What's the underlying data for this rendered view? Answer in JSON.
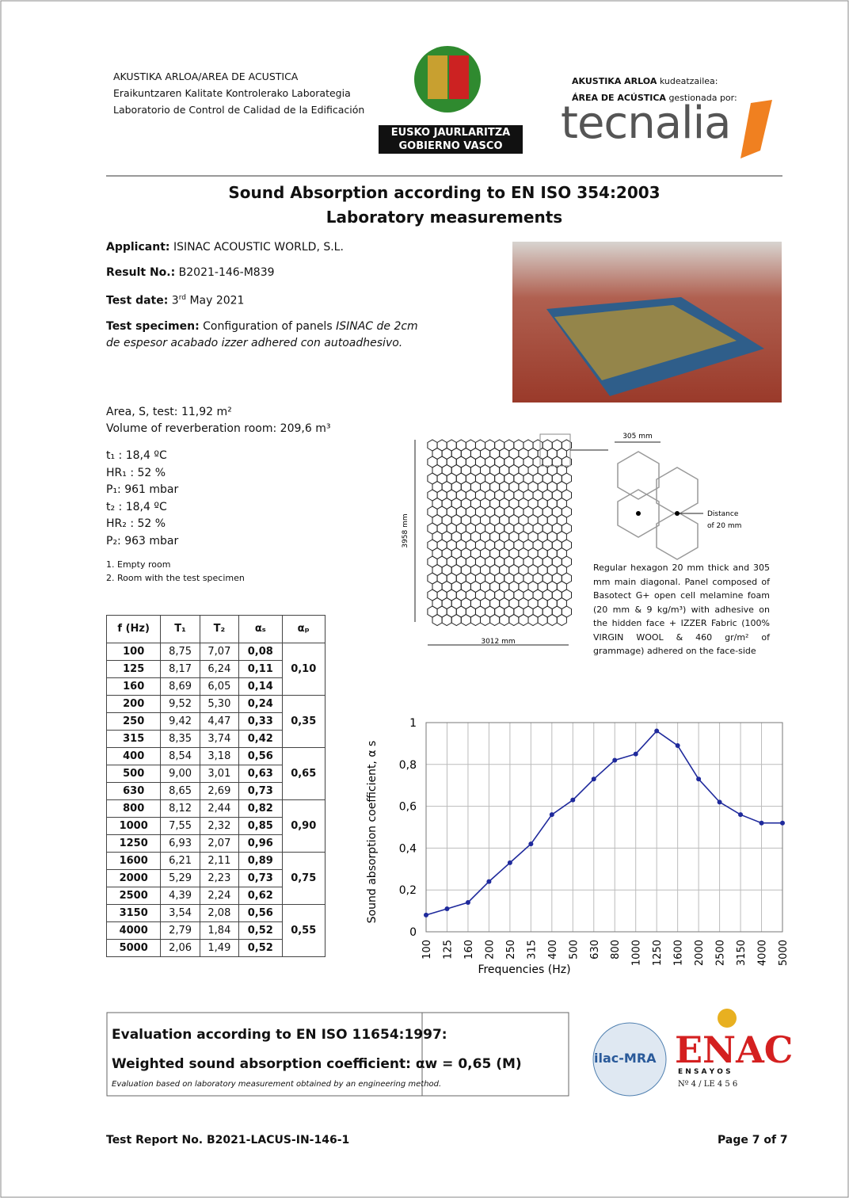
{
  "header": {
    "lab_lines": [
      "AKUSTIKA ARLOA/AREA DE ACUSTICA",
      "Eraikuntzaren Kalitate Kontrolerako Laborategia",
      "Laboratorio de Control de Calidad de la Edificación"
    ],
    "gov_badge": [
      "EUSKO JAURLARITZA",
      "GOBIERNO VASCO"
    ],
    "manager_lines": [
      {
        "bold": "AKUSTIKA ARLOA",
        "rest": "kudeatzailea:"
      },
      {
        "bold": "ÁREA DE ACÚSTICA",
        "rest": "gestionada por:"
      }
    ],
    "brand": "tecnalia"
  },
  "title": [
    "Sound Absorption according to EN ISO 354:2003",
    "Laboratory measurements"
  ],
  "info": {
    "applicant": {
      "label": "Applicant:",
      "value": "ISINAC ACOUSTIC WORLD, S.L."
    },
    "result": {
      "label": "Result No.:",
      "value": "B2021-146-M839"
    },
    "date": {
      "label": "Test date:",
      "day": "3",
      "suffix": "rd",
      "rest": "May 2021"
    },
    "specimen": {
      "label": "Test specimen:",
      "value": "Configuration of panels",
      "italic": "ISINAC de 2cm de espesor acabado izzer adhered con autoadhesivo."
    }
  },
  "conditions": {
    "room": [
      "Area, S, test: 11,92 m²",
      "Volume of reverberation room: 209,6 m³"
    ],
    "climate": [
      "t₁ : 18,4 ºC",
      "HR₁ : 52 %",
      "P₁: 961 mbar",
      "t₂ : 18,4 ºC",
      "HR₂ : 52 %",
      "P₂: 963 mbar"
    ],
    "notes": [
      "1. Empty room",
      "2. Room with the test specimen"
    ]
  },
  "diagram": {
    "diagonal": "305 mm",
    "height": "3958 mm",
    "width": "3012 mm",
    "distance": [
      "Distance",
      "of 20 mm"
    ],
    "description": "Regular hexagon 20 mm thick and 305 mm main diagonal. Panel composed of Basotect G+ open cell melamine foam (20 mm & 9 kg/m³) with adhesive on the hidden face + IZZER Fabric (100% VIRGIN WOOL & 460 gr/m² of grammage) adhered on the face-side"
  },
  "table": {
    "header": [
      "f (Hz)",
      "T₁",
      "T₂",
      "αₛ",
      "αₚ"
    ],
    "rows": [
      [
        "100",
        "8,75",
        "7,07",
        "0,08"
      ],
      [
        "125",
        "8,17",
        "6,24",
        "0,11"
      ],
      [
        "160",
        "8,69",
        "6,05",
        "0,14"
      ],
      [
        "200",
        "9,52",
        "5,30",
        "0,24"
      ],
      [
        "250",
        "9,42",
        "4,47",
        "0,33"
      ],
      [
        "315",
        "8,35",
        "3,74",
        "0,42"
      ],
      [
        "400",
        "8,54",
        "3,18",
        "0,56"
      ],
      [
        "500",
        "9,00",
        "3,01",
        "0,63"
      ],
      [
        "630",
        "8,65",
        "2,69",
        "0,73"
      ],
      [
        "800",
        "8,12",
        "2,44",
        "0,82"
      ],
      [
        "1000",
        "7,55",
        "2,32",
        "0,85"
      ],
      [
        "1250",
        "6,93",
        "2,07",
        "0,96"
      ],
      [
        "1600",
        "6,21",
        "2,11",
        "0,89"
      ],
      [
        "2000",
        "5,29",
        "2,23",
        "0,73"
      ],
      [
        "2500",
        "4,39",
        "2,24",
        "0,62"
      ],
      [
        "3150",
        "3,54",
        "2,08",
        "0,56"
      ],
      [
        "4000",
        "2,79",
        "1,84",
        "0,52"
      ],
      [
        "5000",
        "2,06",
        "1,49",
        "0,52"
      ]
    ],
    "groups": [
      "0,10",
      "0,35",
      "0,65",
      "0,90",
      "0,75",
      "0,55"
    ]
  },
  "chart_data": {
    "type": "line",
    "x_label": "Frequencies (Hz)",
    "y_label": "Sound absorption coefficient, α s",
    "categories": [
      "100",
      "125",
      "160",
      "200",
      "250",
      "315",
      "400",
      "500",
      "630",
      "800",
      "1000",
      "1250",
      "1600",
      "2000",
      "2500",
      "3150",
      "4000",
      "5000"
    ],
    "values": [
      0.08,
      0.11,
      0.14,
      0.24,
      0.33,
      0.42,
      0.56,
      0.63,
      0.73,
      0.82,
      0.85,
      0.96,
      0.89,
      0.73,
      0.62,
      0.56,
      0.52,
      0.52
    ],
    "color": "#1f2a9c",
    "ylim": [
      0,
      1
    ],
    "yticks": [
      0,
      {
        "value": 0.2,
        "label": "0,2"
      },
      {
        "value": 0.4,
        "label": "0,4"
      },
      {
        "value": 0.6,
        "label": "0,6"
      },
      {
        "value": 0.8,
        "label": "0,8"
      },
      1
    ],
    "grid": true
  },
  "evaluation": {
    "lines": [
      "Evaluation according to EN ISO 11654:1997:",
      "Weighted sound absorption coefficient: αw = 0,65 (M)"
    ],
    "note": "Evaluation based on laboratory measurement obtained by an engineering method."
  },
  "accreditation": {
    "ilac": "ilac-MRA",
    "enac": "ENAC",
    "ensayos": "E N S A Y O S",
    "number": "Nº 4 / LE 4 5 6"
  },
  "footer": {
    "report": "Test Report No. B2021-LACUS-IN-146-1",
    "page": "Page 7 of 7"
  }
}
